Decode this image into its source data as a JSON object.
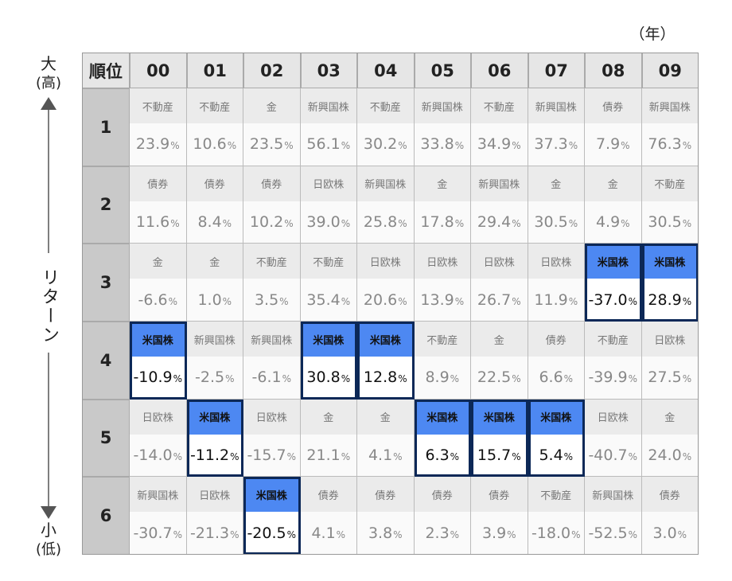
{
  "unit_note": "（年）",
  "axis": {
    "top": "大",
    "top_sub": "(高)",
    "middle": "リターン",
    "bottom": "小",
    "bottom_sub": "(低)"
  },
  "table": {
    "corner": "順位",
    "unit": "%",
    "years": [
      "00",
      "01",
      "02",
      "03",
      "04",
      "05",
      "06",
      "07",
      "08",
      "09"
    ],
    "rows": [
      {
        "rank": "1",
        "cells": [
          {
            "asset": "不動産",
            "value": "23.9"
          },
          {
            "asset": "不動産",
            "value": "10.6"
          },
          {
            "asset": "金",
            "value": "23.5"
          },
          {
            "asset": "新興国株",
            "value": "56.1"
          },
          {
            "asset": "不動産",
            "value": "30.2"
          },
          {
            "asset": "新興国株",
            "value": "33.8"
          },
          {
            "asset": "不動産",
            "value": "34.9"
          },
          {
            "asset": "新興国株",
            "value": "37.3"
          },
          {
            "asset": "債券",
            "value": "7.9"
          },
          {
            "asset": "新興国株",
            "value": "76.3"
          }
        ]
      },
      {
        "rank": "2",
        "cells": [
          {
            "asset": "債券",
            "value": "11.6"
          },
          {
            "asset": "債券",
            "value": "8.4"
          },
          {
            "asset": "債券",
            "value": "10.2"
          },
          {
            "asset": "日欧株",
            "value": "39.0"
          },
          {
            "asset": "新興国株",
            "value": "25.8"
          },
          {
            "asset": "金",
            "value": "17.8"
          },
          {
            "asset": "新興国株",
            "value": "29.4"
          },
          {
            "asset": "金",
            "value": "30.5"
          },
          {
            "asset": "金",
            "value": "4.9"
          },
          {
            "asset": "不動産",
            "value": "30.5"
          }
        ]
      },
      {
        "rank": "3",
        "cells": [
          {
            "asset": "金",
            "value": "-6.6"
          },
          {
            "asset": "金",
            "value": "1.0"
          },
          {
            "asset": "不動産",
            "value": "3.5"
          },
          {
            "asset": "不動産",
            "value": "35.4"
          },
          {
            "asset": "日欧株",
            "value": "20.6"
          },
          {
            "asset": "日欧株",
            "value": "13.9"
          },
          {
            "asset": "日欧株",
            "value": "26.7"
          },
          {
            "asset": "日欧株",
            "value": "11.9"
          },
          {
            "asset": "米国株",
            "value": "-37.0",
            "highlight": true
          },
          {
            "asset": "米国株",
            "value": "28.9",
            "highlight": true
          }
        ]
      },
      {
        "rank": "4",
        "cells": [
          {
            "asset": "米国株",
            "value": "-10.9",
            "highlight": true
          },
          {
            "asset": "新興国株",
            "value": "-2.5"
          },
          {
            "asset": "新興国株",
            "value": "-6.1"
          },
          {
            "asset": "米国株",
            "value": "30.8",
            "highlight": true
          },
          {
            "asset": "米国株",
            "value": "12.8",
            "highlight": true
          },
          {
            "asset": "不動産",
            "value": "8.9"
          },
          {
            "asset": "金",
            "value": "22.5"
          },
          {
            "asset": "債券",
            "value": "6.6"
          },
          {
            "asset": "不動産",
            "value": "-39.9"
          },
          {
            "asset": "日欧株",
            "value": "27.5"
          }
        ]
      },
      {
        "rank": "5",
        "cells": [
          {
            "asset": "日欧株",
            "value": "-14.0"
          },
          {
            "asset": "米国株",
            "value": "-11.2",
            "highlight": true
          },
          {
            "asset": "日欧株",
            "value": "-15.7"
          },
          {
            "asset": "金",
            "value": "21.1"
          },
          {
            "asset": "金",
            "value": "4.1"
          },
          {
            "asset": "米国株",
            "value": "6.3",
            "highlight": true
          },
          {
            "asset": "米国株",
            "value": "15.7",
            "highlight": true
          },
          {
            "asset": "米国株",
            "value": "5.4",
            "highlight": true
          },
          {
            "asset": "日欧株",
            "value": "-40.7"
          },
          {
            "asset": "金",
            "value": "24.0"
          }
        ]
      },
      {
        "rank": "6",
        "cells": [
          {
            "asset": "新興国株",
            "value": "-30.7"
          },
          {
            "asset": "日欧株",
            "value": "-21.3"
          },
          {
            "asset": "米国株",
            "value": "-20.5",
            "highlight": true
          },
          {
            "asset": "債券",
            "value": "4.1"
          },
          {
            "asset": "債券",
            "value": "3.8"
          },
          {
            "asset": "債券",
            "value": "2.3"
          },
          {
            "asset": "債券",
            "value": "3.9"
          },
          {
            "asset": "不動産",
            "value": "-18.0"
          },
          {
            "asset": "新興国株",
            "value": "-52.5"
          },
          {
            "asset": "債券",
            "value": "3.0"
          }
        ]
      }
    ]
  }
}
